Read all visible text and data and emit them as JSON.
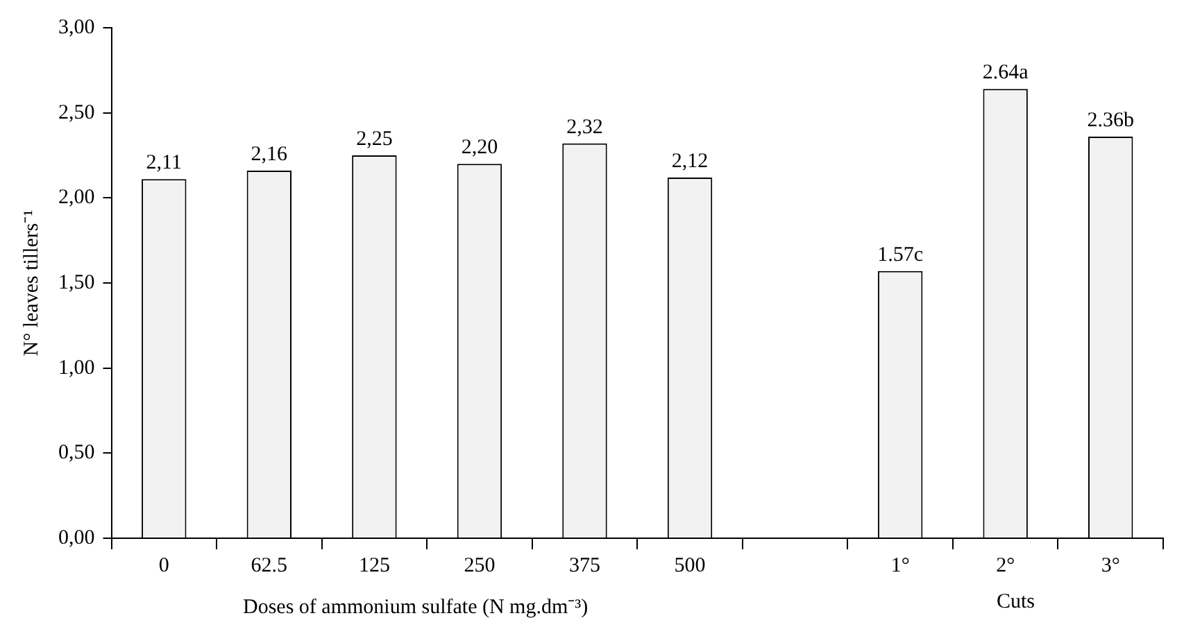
{
  "chart_data": {
    "type": "bar",
    "ylabel": "N° leaves tillers⁻¹",
    "xlabel": "Doses of ammonium sulfate (N mg.dm⁻³)",
    "annotations": [
      "Cuts"
    ],
    "categories": [
      "0",
      "62.5",
      "125",
      "250",
      "375",
      "500",
      null,
      "1°",
      "2°",
      "3°"
    ],
    "series": [
      {
        "color": "#f2f2f2",
        "values": [
          2.11,
          2.16,
          2.25,
          2.2,
          2.32,
          2.12,
          null,
          1.57,
          2.64,
          2.36
        ],
        "value_labels": [
          "2,11",
          "2,16",
          "2,25",
          "2,20",
          "2,32",
          "2,12",
          null,
          "1.57c",
          "2.64a",
          "2.36b"
        ]
      }
    ],
    "ylim": [
      0,
      3
    ],
    "yticks": [
      {
        "value": 0,
        "label": "0,00"
      },
      {
        "value": 0.5,
        "label": "0,50"
      },
      {
        "value": 1,
        "label": "1,00"
      },
      {
        "value": 1.5,
        "label": "1,50"
      },
      {
        "value": 2,
        "label": "2,00"
      },
      {
        "value": 2.5,
        "label": "2,50"
      },
      {
        "value": 3,
        "label": "3,00"
      }
    ],
    "legend": false
  }
}
